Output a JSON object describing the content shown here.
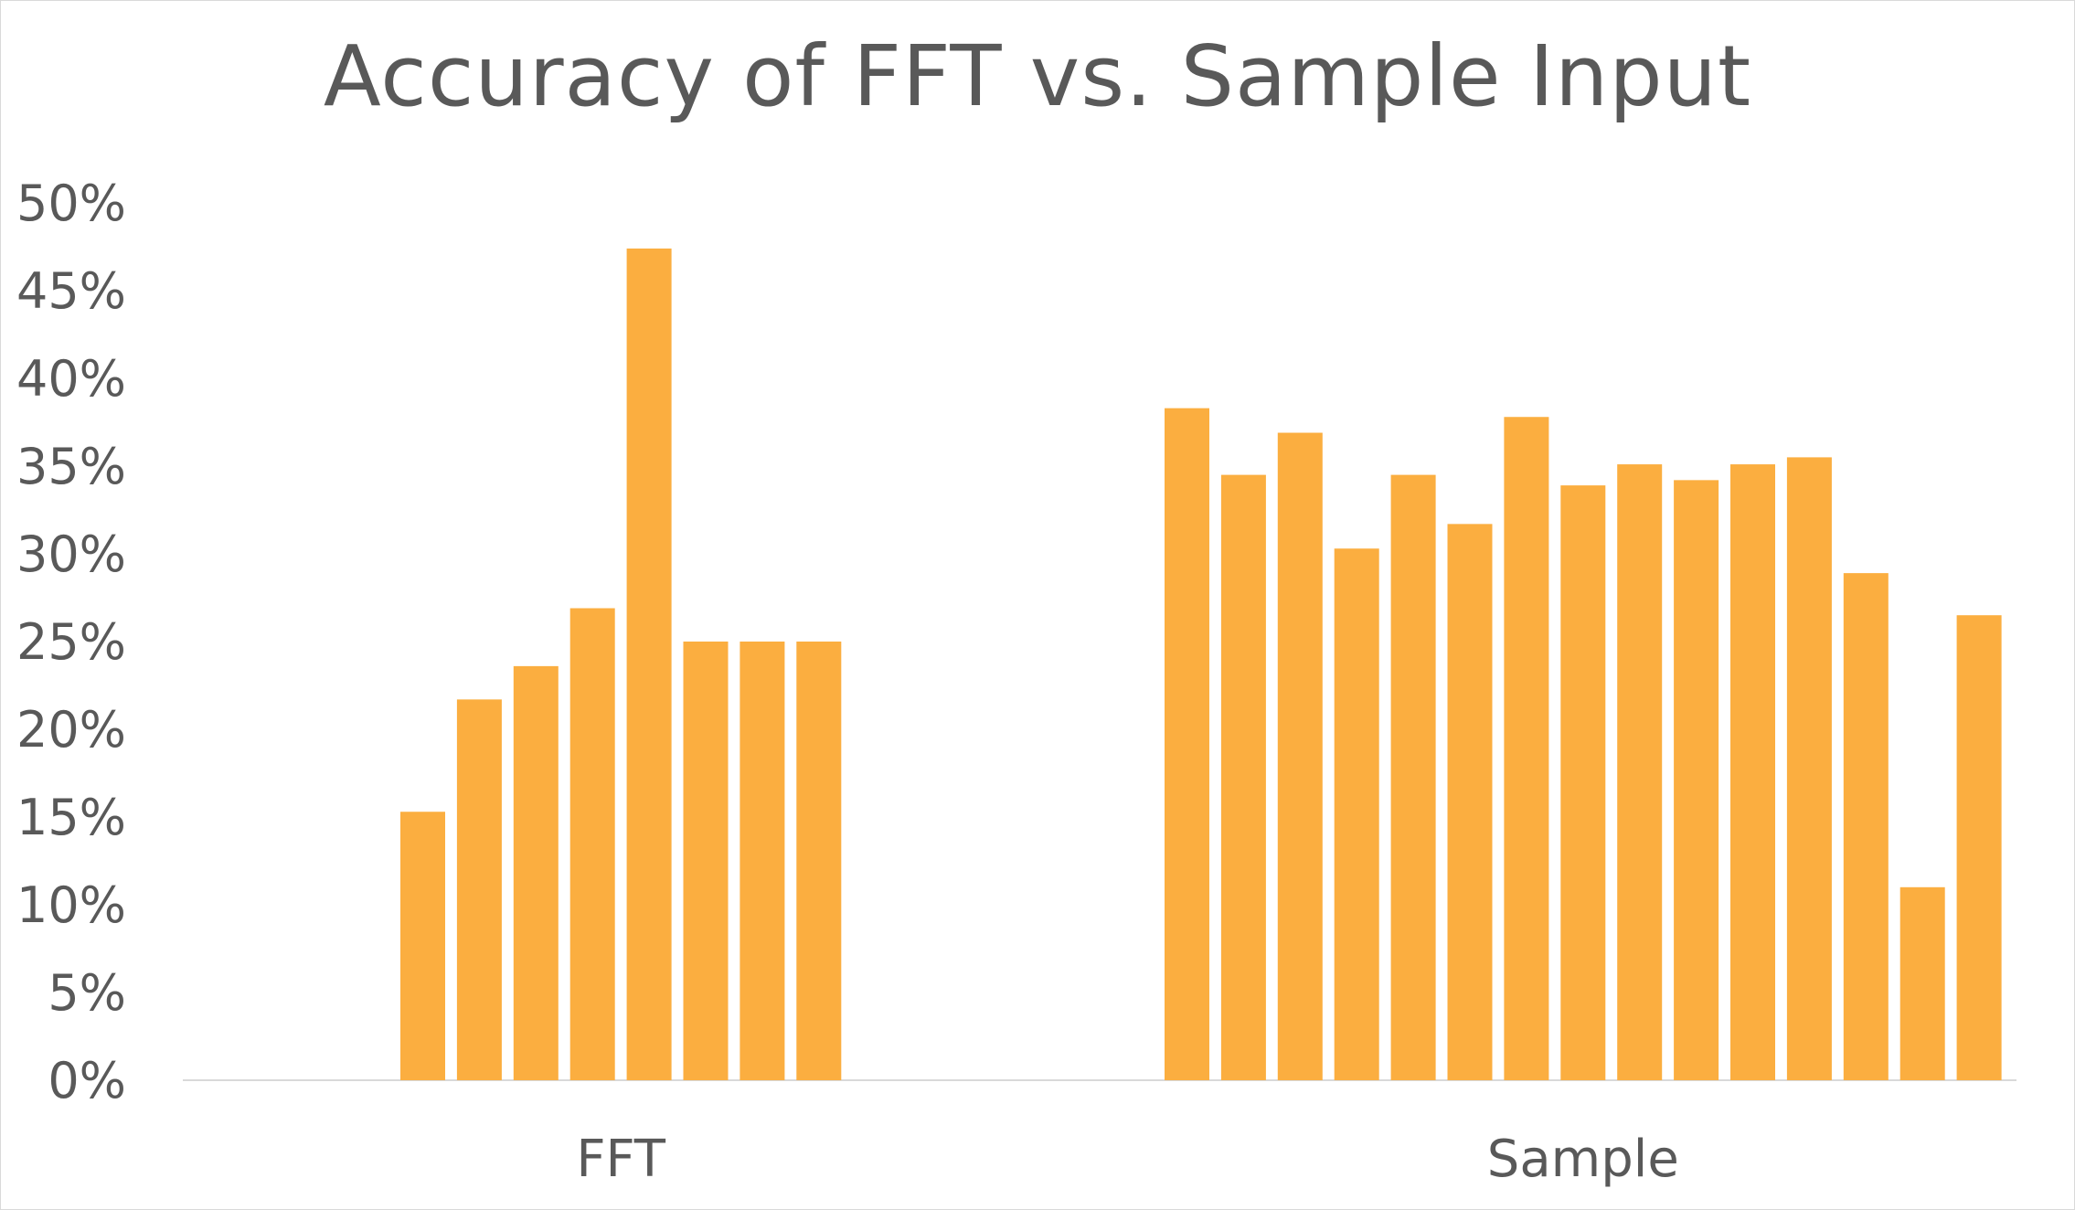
{
  "chart_data": {
    "type": "bar",
    "title": "Accuracy of FFT vs. Sample Input",
    "xlabel": "",
    "ylabel": "",
    "ylim": [
      0,
      50
    ],
    "yticks": [
      "0%",
      "5%",
      "10%",
      "15%",
      "20%",
      "25%",
      "30%",
      "35%",
      "40%",
      "45%",
      "50%"
    ],
    "ytick_values": [
      0,
      5,
      10,
      15,
      20,
      25,
      30,
      35,
      40,
      45,
      50
    ],
    "grid": false,
    "legend": "none",
    "bar_color": "#FBAE40",
    "groups": [
      {
        "category": "FFT",
        "values": [
          15.3,
          21.7,
          23.6,
          26.9,
          47.4,
          25.0,
          25.0,
          25.0
        ]
      },
      {
        "category": "Sample",
        "values": [
          38.3,
          34.5,
          36.9,
          30.3,
          34.5,
          31.7,
          37.8,
          33.9,
          35.1,
          34.2,
          35.1,
          35.5,
          28.9,
          11.0,
          26.5
        ]
      }
    ]
  }
}
